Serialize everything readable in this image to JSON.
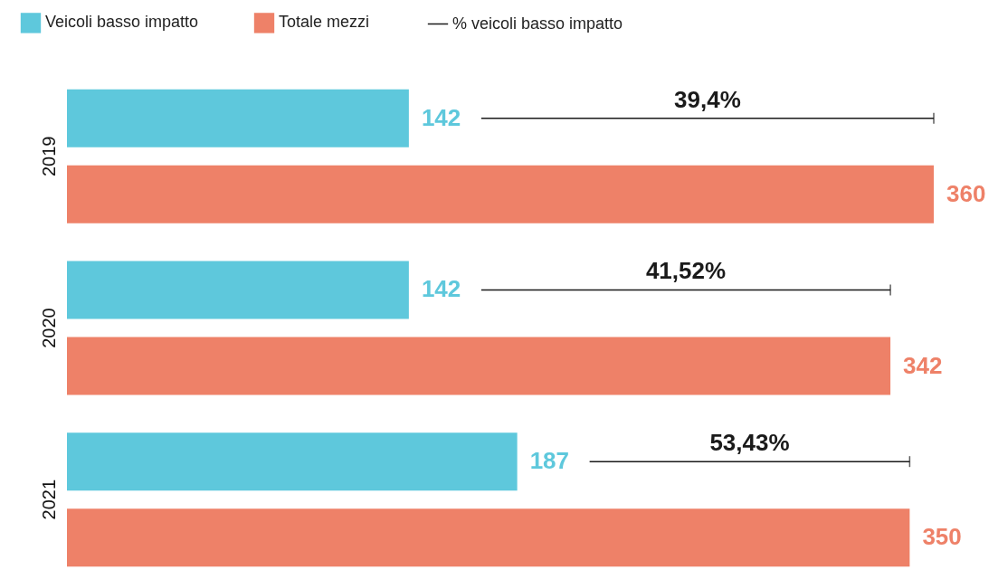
{
  "chart_data": {
    "type": "bar",
    "orientation": "horizontal",
    "categories": [
      "2019",
      "2020",
      "2021"
    ],
    "series": [
      {
        "name": "Veicoli basso impatto",
        "color": "#5ec8dc",
        "values": [
          142,
          142,
          187
        ]
      },
      {
        "name": "Totale mezzi",
        "color": "#ee8168",
        "values": [
          360,
          342,
          350
        ]
      }
    ],
    "annotations": [
      "39,4%",
      "41,52%",
      "53,43%",
      "% veicoli basso impatto"
    ],
    "data_labels": true,
    "legend": "top left",
    "grid": false
  }
}
